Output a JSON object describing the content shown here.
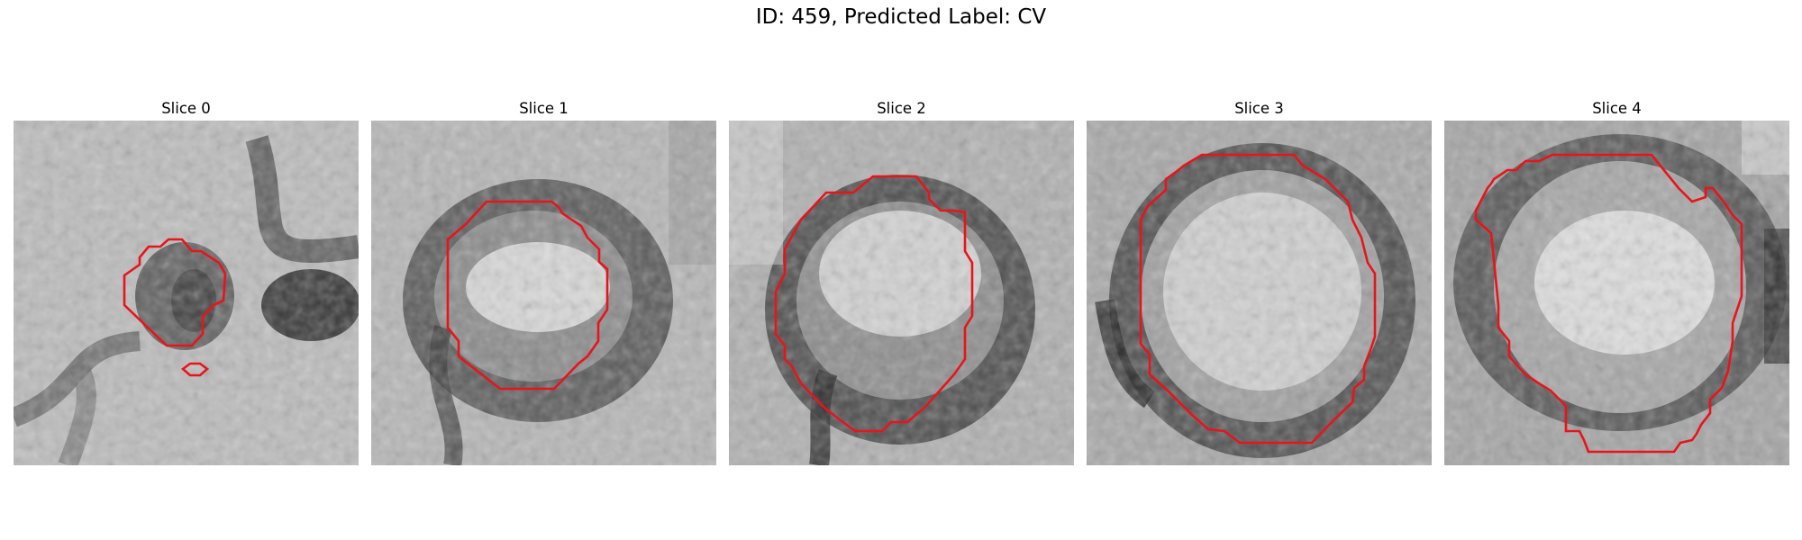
{
  "figure": {
    "title": "ID: 459, Predicted Label: CV"
  },
  "colors": {
    "contour": "#e8141c"
  },
  "panels": [
    {
      "title": "Slice 0"
    },
    {
      "title": "Slice 1"
    },
    {
      "title": "Slice 2"
    },
    {
      "title": "Slice 3"
    },
    {
      "title": "Slice 4"
    }
  ]
}
